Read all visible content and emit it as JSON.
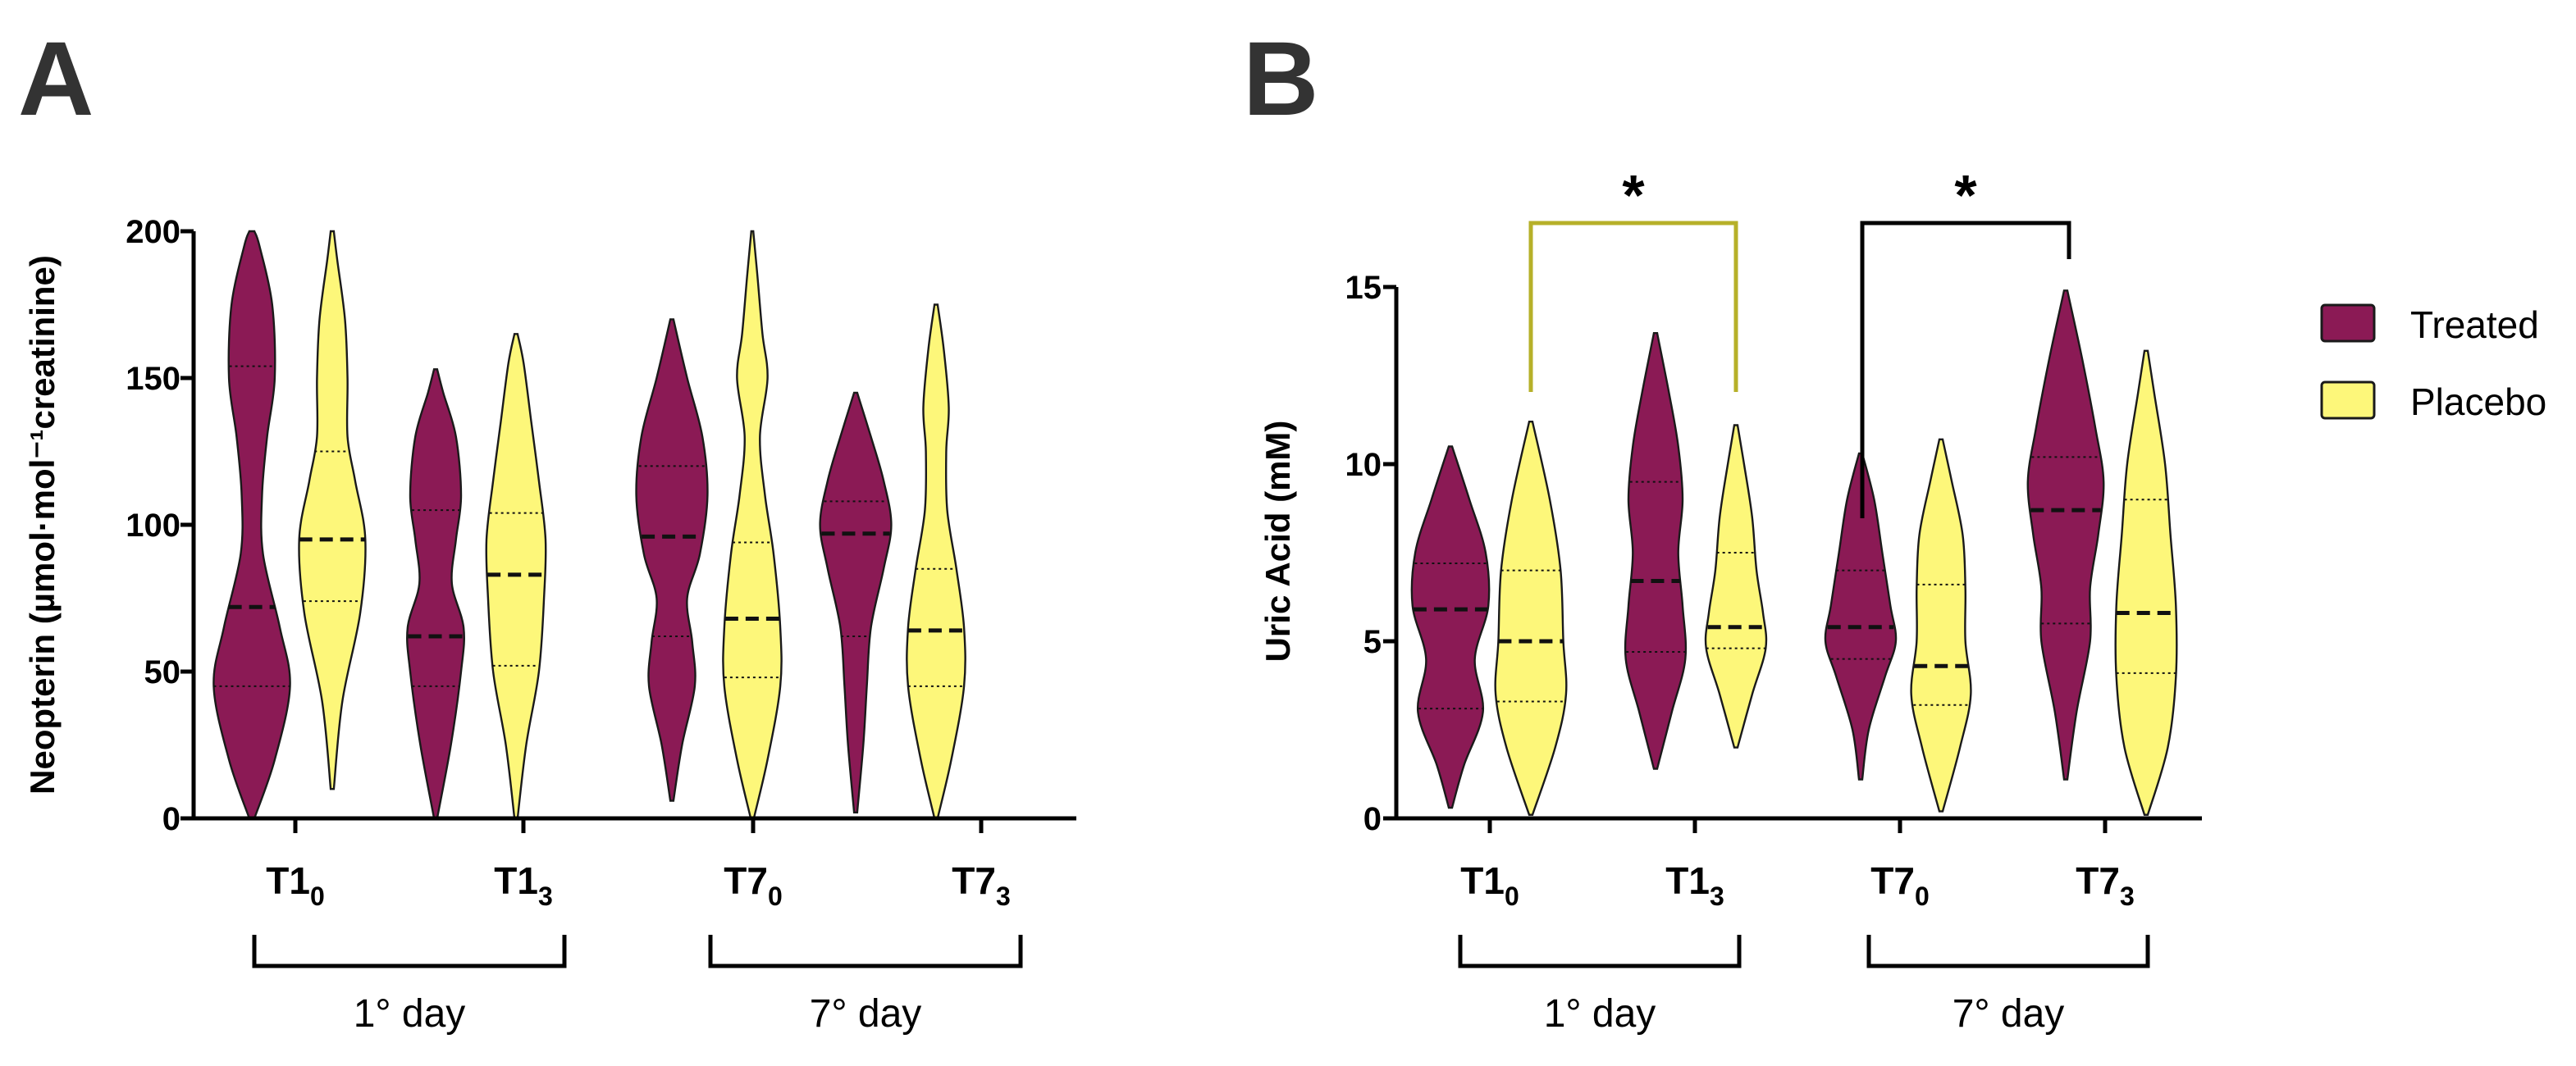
{
  "colors": {
    "treated": "#8b1a55",
    "placebo": "#fdf77a",
    "outline": "#1a1a1a",
    "sig_placebo": "#b6b029",
    "sig_treated": "#000000"
  },
  "legend": {
    "treated_label": "Treated",
    "placebo_label": "Placebo"
  },
  "chart_data": [
    {
      "type": "violin",
      "panel_label": "A",
      "ylabel": "Neopterin (µmol·mol⁻¹creatinine)",
      "ylim": [
        0,
        200
      ],
      "yticks": [
        "0",
        "50",
        "100",
        "150",
        "200"
      ],
      "categories": [
        {
          "base": "T1",
          "sub": "0"
        },
        {
          "base": "T1",
          "sub": "3"
        },
        {
          "base": "T7",
          "sub": "0"
        },
        {
          "base": "T7",
          "sub": "3"
        }
      ],
      "groups": [
        {
          "label": "1° day",
          "categories": [
            0,
            1
          ]
        },
        {
          "label": "7° day",
          "categories": [
            2,
            3
          ]
        }
      ],
      "series": [
        {
          "name": "Treated",
          "violins": [
            {
              "min": 0,
              "max": 200,
              "q1": 45,
              "median": 72,
              "q3": 154,
              "profile": [
                [
                  0,
                  0.05
                ],
                [
                  20,
                  0.45
                ],
                [
                  45,
                  0.75
                ],
                [
                  65,
                  0.55
                ],
                [
                  90,
                  0.22
                ],
                [
                  110,
                  0.2
                ],
                [
                  130,
                  0.3
                ],
                [
                  150,
                  0.45
                ],
                [
                  175,
                  0.4
                ],
                [
                  195,
                  0.15
                ],
                [
                  200,
                  0.05
                ]
              ]
            },
            {
              "min": 0,
              "max": 153,
              "q1": 45,
              "median": 62,
              "q3": 105,
              "profile": [
                [
                  0,
                  0.03
                ],
                [
                  25,
                  0.3
                ],
                [
                  50,
                  0.5
                ],
                [
                  65,
                  0.55
                ],
                [
                  80,
                  0.32
                ],
                [
                  95,
                  0.4
                ],
                [
                  110,
                  0.5
                ],
                [
                  130,
                  0.4
                ],
                [
                  145,
                  0.15
                ],
                [
                  153,
                  0.03
                ]
              ]
            },
            {
              "min": 6,
              "max": 170,
              "q1": 62,
              "median": 96,
              "q3": 120,
              "profile": [
                [
                  6,
                  0.03
                ],
                [
                  25,
                  0.2
                ],
                [
                  45,
                  0.45
                ],
                [
                  60,
                  0.4
                ],
                [
                  75,
                  0.3
                ],
                [
                  90,
                  0.55
                ],
                [
                  110,
                  0.7
                ],
                [
                  130,
                  0.6
                ],
                [
                  150,
                  0.3
                ],
                [
                  170,
                  0.03
                ]
              ]
            },
            {
              "min": 2,
              "max": 145,
              "q1": 62,
              "median": 97,
              "q3": 108,
              "profile": [
                [
                  2,
                  0.03
                ],
                [
                  25,
                  0.15
                ],
                [
                  45,
                  0.22
                ],
                [
                  65,
                  0.3
                ],
                [
                  85,
                  0.55
                ],
                [
                  100,
                  0.7
                ],
                [
                  115,
                  0.55
                ],
                [
                  130,
                  0.3
                ],
                [
                  145,
                  0.03
                ]
              ]
            }
          ]
        },
        {
          "name": "Placebo",
          "violins": [
            {
              "min": 10,
              "max": 200,
              "q1": 74,
              "median": 95,
              "q3": 125,
              "profile": [
                [
                  10,
                  0.03
                ],
                [
                  40,
                  0.2
                ],
                [
                  70,
                  0.55
                ],
                [
                  95,
                  0.65
                ],
                [
                  115,
                  0.45
                ],
                [
                  130,
                  0.3
                ],
                [
                  150,
                  0.3
                ],
                [
                  170,
                  0.25
                ],
                [
                  190,
                  0.1
                ],
                [
                  200,
                  0.03
                ]
              ]
            },
            {
              "min": 0,
              "max": 165,
              "q1": 52,
              "median": 83,
              "q3": 104,
              "profile": [
                [
                  0,
                  0.03
                ],
                [
                  25,
                  0.2
                ],
                [
                  50,
                  0.45
                ],
                [
                  75,
                  0.55
                ],
                [
                  95,
                  0.58
                ],
                [
                  115,
                  0.45
                ],
                [
                  135,
                  0.3
                ],
                [
                  155,
                  0.15
                ],
                [
                  165,
                  0.03
                ]
              ]
            },
            {
              "min": 0,
              "max": 200,
              "q1": 48,
              "median": 68,
              "q3": 94,
              "profile": [
                [
                  0,
                  0.03
                ],
                [
                  20,
                  0.3
                ],
                [
                  45,
                  0.55
                ],
                [
                  65,
                  0.55
                ],
                [
                  90,
                  0.42
                ],
                [
                  110,
                  0.25
                ],
                [
                  130,
                  0.15
                ],
                [
                  150,
                  0.3
                ],
                [
                  165,
                  0.2
                ],
                [
                  185,
                  0.1
                ],
                [
                  200,
                  0.02
                ]
              ]
            },
            {
              "min": 0,
              "max": 175,
              "q1": 45,
              "median": 64,
              "q3": 85,
              "profile": [
                [
                  0,
                  0.03
                ],
                [
                  20,
                  0.3
                ],
                [
                  45,
                  0.55
                ],
                [
                  65,
                  0.55
                ],
                [
                  85,
                  0.4
                ],
                [
                  105,
                  0.22
                ],
                [
                  125,
                  0.2
                ],
                [
                  140,
                  0.25
                ],
                [
                  160,
                  0.15
                ],
                [
                  175,
                  0.03
                ]
              ]
            }
          ]
        }
      ],
      "significance": []
    },
    {
      "type": "violin",
      "panel_label": "B",
      "ylabel": "Uric Acid (mM)",
      "ylim": [
        0,
        15
      ],
      "yticks": [
        "0",
        "5",
        "10",
        "15"
      ],
      "categories": [
        {
          "base": "T1",
          "sub": "0"
        },
        {
          "base": "T1",
          "sub": "3"
        },
        {
          "base": "T7",
          "sub": "0"
        },
        {
          "base": "T7",
          "sub": "3"
        }
      ],
      "groups": [
        {
          "label": "1° day",
          "categories": [
            0,
            1
          ]
        },
        {
          "label": "7° day",
          "categories": [
            2,
            3
          ]
        }
      ],
      "series": [
        {
          "name": "Treated",
          "violins": [
            {
              "min": 0.3,
              "max": 10.5,
              "q1": 3.1,
              "median": 5.9,
              "q3": 7.2,
              "profile": [
                [
                  0.3,
                  0.03
                ],
                [
                  1.5,
                  0.25
                ],
                [
                  3,
                  0.6
                ],
                [
                  4.5,
                  0.45
                ],
                [
                  6,
                  0.7
                ],
                [
                  7.5,
                  0.65
                ],
                [
                  9,
                  0.35
                ],
                [
                  10.5,
                  0.03
                ]
              ]
            },
            {
              "min": 1.4,
              "max": 13.7,
              "q1": 4.7,
              "median": 6.7,
              "q3": 9.5,
              "profile": [
                [
                  1.4,
                  0.03
                ],
                [
                  3,
                  0.3
                ],
                [
                  4.5,
                  0.55
                ],
                [
                  6,
                  0.5
                ],
                [
                  7.5,
                  0.42
                ],
                [
                  9,
                  0.5
                ],
                [
                  10.5,
                  0.42
                ],
                [
                  12,
                  0.25
                ],
                [
                  13.7,
                  0.03
                ]
              ]
            },
            {
              "min": 1.1,
              "max": 10.3,
              "q1": 4.5,
              "median": 5.4,
              "q3": 7.0,
              "profile": [
                [
                  1.1,
                  0.03
                ],
                [
                  2.5,
                  0.15
                ],
                [
                  4,
                  0.45
                ],
                [
                  5,
                  0.65
                ],
                [
                  6,
                  0.55
                ],
                [
                  7.5,
                  0.4
                ],
                [
                  9,
                  0.25
                ],
                [
                  10.3,
                  0.03
                ]
              ]
            },
            {
              "min": 1.1,
              "max": 14.9,
              "q1": 5.5,
              "median": 8.7,
              "q3": 10.2,
              "profile": [
                [
                  1.1,
                  0.03
                ],
                [
                  3,
                  0.2
                ],
                [
                  5,
                  0.45
                ],
                [
                  6.5,
                  0.45
                ],
                [
                  8,
                  0.6
                ],
                [
                  9.5,
                  0.7
                ],
                [
                  11,
                  0.55
                ],
                [
                  13,
                  0.3
                ],
                [
                  14.9,
                  0.03
                ]
              ]
            }
          ]
        },
        {
          "name": "Placebo",
          "violins": [
            {
              "min": 0.1,
              "max": 11.2,
              "q1": 3.3,
              "median": 5.0,
              "q3": 7.0,
              "profile": [
                [
                  0.1,
                  0.03
                ],
                [
                  2,
                  0.45
                ],
                [
                  3.5,
                  0.65
                ],
                [
                  5,
                  0.6
                ],
                [
                  7,
                  0.55
                ],
                [
                  9,
                  0.35
                ],
                [
                  11.2,
                  0.03
                ]
              ]
            },
            {
              "min": 2.0,
              "max": 11.1,
              "q1": 4.8,
              "median": 5.4,
              "q3": 7.5,
              "profile": [
                [
                  2,
                  0.03
                ],
                [
                  3.5,
                  0.3
                ],
                [
                  4.8,
                  0.55
                ],
                [
                  5.8,
                  0.5
                ],
                [
                  7,
                  0.38
                ],
                [
                  8.5,
                  0.3
                ],
                [
                  10,
                  0.15
                ],
                [
                  11.1,
                  0.03
                ]
              ]
            },
            {
              "min": 0.2,
              "max": 10.7,
              "q1": 3.2,
              "median": 4.3,
              "q3": 6.6,
              "profile": [
                [
                  0.2,
                  0.03
                ],
                [
                  2,
                  0.35
                ],
                [
                  3.5,
                  0.55
                ],
                [
                  5,
                  0.45
                ],
                [
                  6.5,
                  0.45
                ],
                [
                  8,
                  0.4
                ],
                [
                  9.5,
                  0.2
                ],
                [
                  10.7,
                  0.03
                ]
              ]
            },
            {
              "min": 0.1,
              "max": 13.2,
              "q1": 4.1,
              "median": 5.8,
              "q3": 9.0,
              "profile": [
                [
                  0.1,
                  0.03
                ],
                [
                  2,
                  0.4
                ],
                [
                  4,
                  0.55
                ],
                [
                  6,
                  0.55
                ],
                [
                  8,
                  0.45
                ],
                [
                  10,
                  0.35
                ],
                [
                  12,
                  0.15
                ],
                [
                  13.2,
                  0.03
                ]
              ]
            }
          ]
        }
      ],
      "significance": [
        {
          "label": "*",
          "from": "Placebo T1₀",
          "to": "Placebo T1₃",
          "color_key": "sig_placebo"
        },
        {
          "label": "*",
          "from": "Treated T7₀",
          "to": "Treated T7₃",
          "color_key": "sig_treated"
        }
      ]
    }
  ]
}
